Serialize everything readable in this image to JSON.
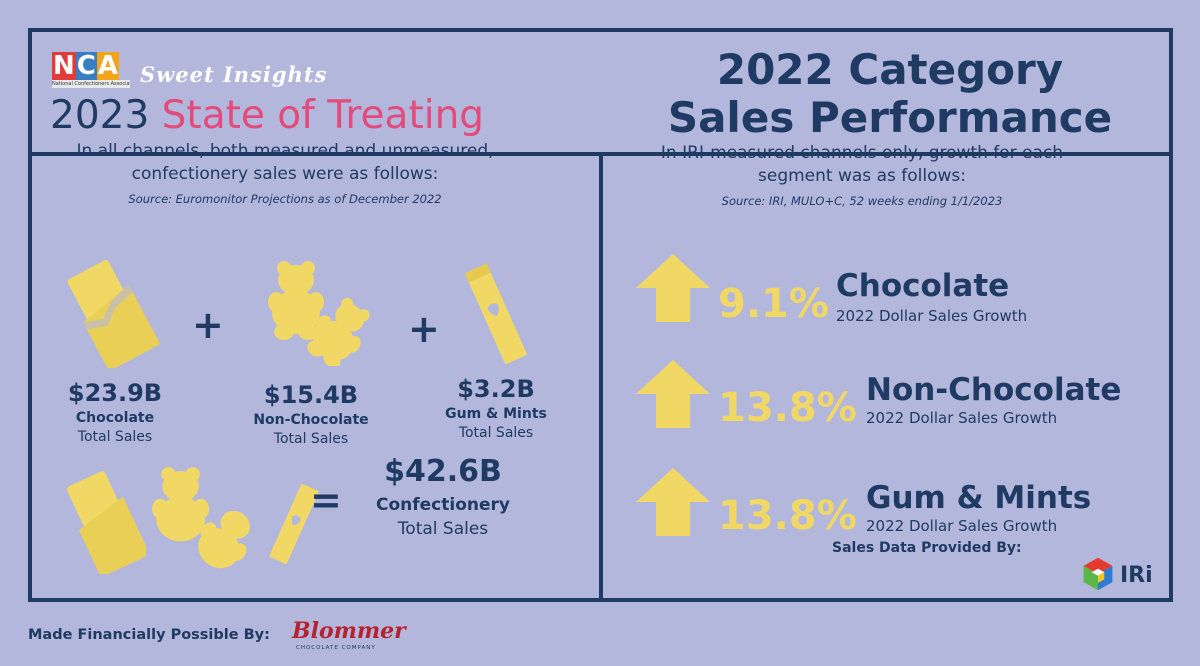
{
  "header": {
    "logo_text": "NCA",
    "logo_subtext": "National Confectioners Association",
    "tagline": "Sweet Insights",
    "year": "2023",
    "report_title": "State of Treating",
    "main_title_line1": "2022 Category",
    "main_title_line2": "Sales Performance"
  },
  "left": {
    "intro_line1": "In all channels, both measured and unmeasured,",
    "intro_line2": "confectionery sales were as follows:",
    "source": "Source: Euromonitor Projections as of December 2022",
    "plus": "+",
    "equals": "=",
    "items": [
      {
        "amount": "$23.9B",
        "name": "Chocolate",
        "sub": "Total Sales",
        "icon": "chocolate-bar-icon"
      },
      {
        "amount": "$15.4B",
        "name": "Non-Chocolate",
        "sub": "Total Sales",
        "icon": "gummy-bear-icon"
      },
      {
        "amount": "$3.2B",
        "name": "Gum & Mints",
        "sub": "Total Sales",
        "icon": "gum-pack-icon"
      }
    ],
    "total": {
      "amount": "$42.6B",
      "name": "Confectionery",
      "sub": "Total Sales"
    }
  },
  "right": {
    "intro_line1": "In IRI-measured channels only, growth for each",
    "intro_line2": "segment was as follows:",
    "source": "Source: IRI, MULO+C, 52 weeks ending 1/1/2023",
    "growth": [
      {
        "pct": "9.1%",
        "segment": "Chocolate",
        "label": "2022 Dollar Sales Growth"
      },
      {
        "pct": "13.8%",
        "segment": "Non-Chocolate",
        "label": "2022 Dollar Sales Growth"
      },
      {
        "pct": "13.8%",
        "segment": "Gum & Mints",
        "label": "2022 Dollar Sales Growth"
      }
    ],
    "provided_by": "Sales Data Provided By:",
    "iri_text": "IRi"
  },
  "footer": {
    "label": "Made Financially Possible By:",
    "sponsor": "Blommer",
    "sponsor_sub": "CHOCOLATE COMPANY"
  },
  "colors": {
    "background": "#b3b7dc",
    "navy": "#1f3a63",
    "yellow": "#f1d865",
    "pink": "#e24b7b"
  }
}
